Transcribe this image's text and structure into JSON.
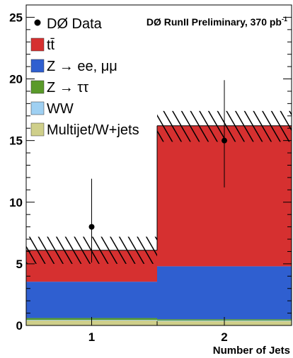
{
  "chart_data": {
    "type": "bar",
    "stacked": true,
    "title": "DØ RunII Preliminary, 370 pb",
    "title_superscript": "-1",
    "xlabel": "Number of Jets",
    "ylabel": "",
    "categories": [
      "1",
      "2"
    ],
    "ylim": [
      0,
      26
    ],
    "yticks": [
      0,
      5,
      10,
      15,
      20,
      25
    ],
    "series": [
      {
        "name": "Multijet/W+jets",
        "color": "#cfcf8a",
        "values": [
          0.4,
          0.35
        ]
      },
      {
        "name": "WW",
        "color": "#9fd0f2",
        "values": [
          0.05,
          0.05
        ]
      },
      {
        "name": "Z → ττ",
        "color": "#5a9a2a",
        "values": [
          0.15,
          0.1
        ]
      },
      {
        "name": "Z → ee, μμ",
        "color": "#2f5fd0",
        "values": [
          2.95,
          4.3
        ]
      },
      {
        "name": "tt̄",
        "color": "#d63030",
        "values": [
          2.55,
          11.4
        ]
      }
    ],
    "uncertainty_band": {
      "low": [
        5.0,
        14.9
      ],
      "high": [
        7.2,
        17.4
      ]
    },
    "data": {
      "name": "DØ Data",
      "values": [
        8,
        15
      ],
      "err_low": [
        2.9,
        3.8
      ],
      "err_high": [
        3.9,
        4.9
      ]
    },
    "legend_position": "top-left"
  }
}
